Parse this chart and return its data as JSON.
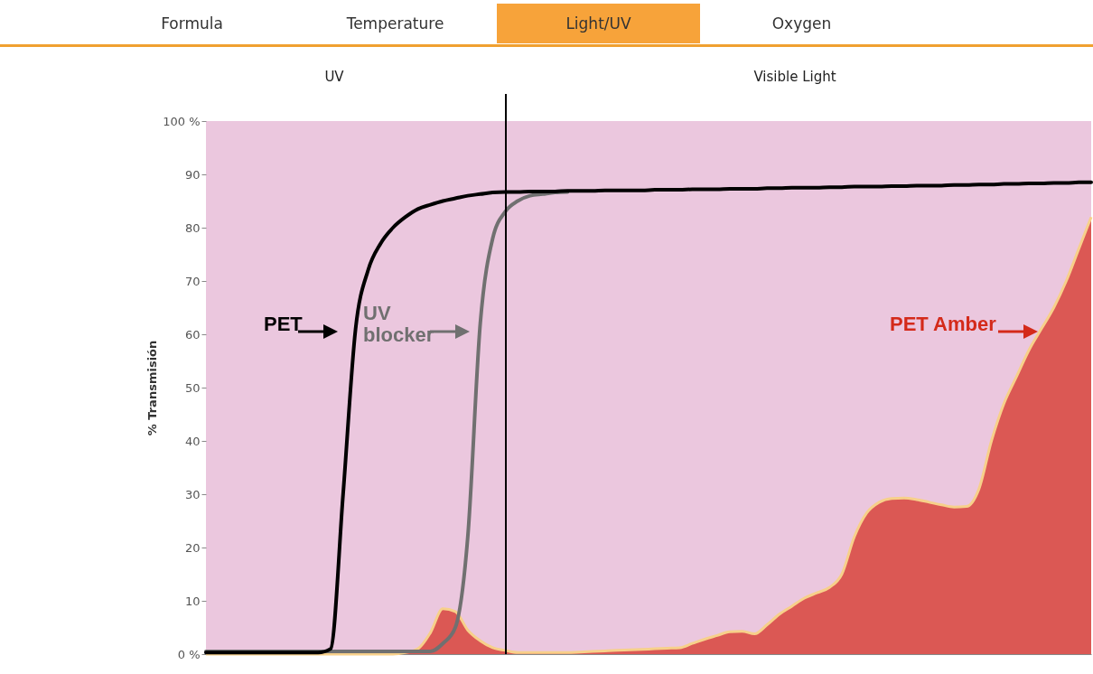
{
  "chart_data": {
    "type": "line",
    "ylabel": "% Transmisión",
    "annotations": [
      "Formula",
      "Temperature",
      "Light/UV",
      "Oxygen",
      "UV",
      "Visible Light"
    ],
    "categories": [
      null,
      null,
      null,
      null,
      null,
      null,
      null,
      null,
      null,
      null,
      null,
      null,
      null,
      null,
      null,
      null,
      null,
      null,
      null,
      null,
      null,
      null,
      null,
      null,
      null,
      null,
      null,
      null,
      null,
      null,
      null,
      null,
      null,
      null,
      null,
      null,
      null,
      null,
      null,
      null,
      null,
      null,
      null,
      null,
      null,
      null,
      null,
      null,
      null,
      null,
      null,
      null,
      null,
      null,
      null,
      null,
      null,
      null,
      null,
      null,
      null,
      null,
      null,
      null,
      null,
      null,
      null,
      null,
      null,
      null,
      null,
      null
    ],
    "tick_labels": "y",
    "legend": "left",
    "ylim": [
      0,
      100
    ],
    "yticks": [
      {
        "value": 0,
        "label": "0 %"
      },
      10,
      20,
      30,
      40,
      50,
      60,
      70,
      80,
      90,
      {
        "value": 100,
        "label": "100 %"
      }
    ],
    "series": [
      {
        "name": "PET Amber",
        "type": "area",
        "color": "#d42a1a",
        "values": [
          0,
          0,
          0,
          0,
          0,
          0,
          0,
          0,
          0,
          0,
          0,
          0,
          0,
          0,
          0,
          0,
          0.3,
          1,
          4,
          8.5,
          8,
          4.5,
          2.5,
          1.2,
          0.7,
          0.3,
          0.3,
          0.3,
          0.3,
          0.3,
          0.4,
          0.5,
          0.6,
          0.7,
          0.8,
          0.9,
          1,
          1.1,
          1.2,
          2,
          2.8,
          3.5,
          4.2,
          4.3,
          3.8,
          5.5,
          7.5,
          9,
          10.5,
          11.5,
          12.5,
          15,
          22,
          26.5,
          28.5,
          29.2,
          29.3,
          29,
          28.5,
          28,
          27.6,
          27.7,
          31,
          40,
          47,
          52,
          57,
          61,
          65,
          70,
          76,
          82
        ]
      },
      {
        "name": "UV blocker",
        "color": "#707070",
        "values": [
          0.5,
          0.5,
          0.5,
          0.5,
          0.5,
          0.5,
          0.5,
          0.5,
          0.5,
          0.5,
          0.5,
          0.5,
          0.5,
          0.5,
          0.5,
          0.5,
          0.5,
          0.5,
          0.5,
          2,
          5,
          22,
          62,
          78,
          83,
          85,
          86,
          86.3,
          86.6,
          86.7,
          null,
          null,
          null,
          null,
          null,
          null,
          null,
          null,
          null,
          null,
          null,
          null,
          null,
          null,
          null,
          null,
          null,
          null,
          null,
          null,
          null,
          null,
          null,
          null,
          null,
          null,
          null,
          null,
          null,
          null,
          null,
          null,
          null,
          null,
          null,
          null,
          null,
          null,
          null,
          null,
          null,
          null
        ]
      },
      {
        "name": "PET",
        "color": "#000000",
        "values": [
          0.3,
          0.3,
          0.3,
          0.3,
          0.3,
          0.3,
          0.3,
          0.3,
          0.3,
          0.3,
          1,
          30,
          61,
          72,
          77,
          80,
          82,
          83.5,
          84.3,
          85,
          85.5,
          86,
          86.3,
          86.6,
          86.7,
          86.7,
          86.8,
          86.8,
          86.8,
          86.9,
          86.9,
          86.9,
          87,
          87,
          87,
          87,
          87.1,
          87.1,
          87.1,
          87.2,
          87.2,
          87.2,
          87.3,
          87.3,
          87.3,
          87.4,
          87.4,
          87.5,
          87.5,
          87.5,
          87.6,
          87.6,
          87.7,
          87.7,
          87.7,
          87.8,
          87.8,
          87.9,
          87.9,
          87.9,
          88,
          88,
          88.1,
          88.1,
          88.2,
          88.2,
          88.3,
          88.3,
          88.4,
          88.4,
          88.5,
          88.5
        ]
      }
    ]
  }
}
